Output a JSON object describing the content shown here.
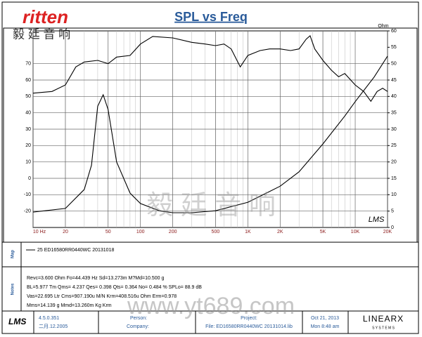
{
  "header": {
    "logo": "ritten",
    "logo_cn": "毅 廷 音 响"
  },
  "chart_data": {
    "type": "line",
    "title": "SPL vs Freq",
    "y2_label": "Ohm",
    "watermark": "LMS",
    "log_x": true,
    "grid": true,
    "xlim": [
      10,
      20000
    ],
    "xticks": [
      {
        "value": 10,
        "label": "10 Hz"
      },
      20,
      50,
      100,
      200,
      500,
      {
        "value": 1000,
        "label": "1K"
      },
      {
        "value": 2000,
        "label": "2K"
      },
      {
        "value": 5000,
        "label": "5K"
      },
      {
        "value": 10000,
        "label": "10K"
      },
      {
        "value": 20000,
        "label": "20K"
      }
    ],
    "ylim": [
      -30,
      90
    ],
    "yticks": [
      -20,
      -10,
      0,
      10,
      20,
      30,
      40,
      50,
      60,
      70
    ],
    "y2lim": [
      0,
      60
    ],
    "y2ticks": [
      0,
      5,
      10,
      15,
      20,
      25,
      30,
      35,
      40,
      45,
      50,
      55,
      60
    ],
    "series": [
      {
        "name": "25  ED16580RR0440WC  20131018",
        "color": "#000000",
        "x": [
          10,
          15,
          20,
          25,
          30,
          40,
          50,
          60,
          80,
          100,
          130,
          200,
          300,
          400,
          500,
          600,
          700,
          850,
          1000,
          1300,
          1600,
          2000,
          2500,
          3000,
          3500,
          3800,
          4200,
          5000,
          6000,
          7000,
          8000,
          10000,
          12000,
          14000,
          16000,
          18000,
          20000
        ],
        "values": [
          52,
          53,
          57,
          68,
          71,
          72,
          70,
          74,
          75,
          82,
          86.6,
          85.7,
          83,
          82,
          81,
          82,
          79,
          68,
          75,
          78,
          79,
          79,
          78,
          79,
          85,
          87,
          79,
          72,
          66,
          62,
          64,
          57,
          53,
          47,
          53,
          55,
          53
        ]
      },
      {
        "color": "#000000",
        "axis": "y2",
        "x": [
          10,
          20,
          30,
          35,
          40,
          45,
          50,
          60,
          80,
          100,
          150,
          200,
          300,
          500,
          1000,
          2000,
          3000,
          5000,
          8000,
          10000,
          15000,
          20000
        ],
        "values": [
          4.7,
          5.8,
          11.6,
          19,
          37,
          40.5,
          36,
          20,
          10.5,
          7.3,
          5.1,
          4.5,
          4.5,
          5.1,
          7.7,
          12.6,
          17,
          25.5,
          34,
          38.4,
          45.9,
          52.3
        ]
      }
    ]
  },
  "panel": {
    "map_label": "Map",
    "notes_label": "Notes",
    "notes": [
      "Revc=3.600 Ohm  Fo=44.439 Hz  Sd=13.273m M?Md=10.500 g",
      "BL=5.977 Tm  Qms= 4.237  Qes= 0.398  Qts= 0.364  No= 0.484 %  SPLo= 88.9 dB",
      "Vas=22.695 Ltr  Cms=907.190u M/N  Krm=408.516u Ohm  Erm=0.978",
      "Mms=14.139 g  Mmd=13.260m Kg  Krm"
    ]
  },
  "footer": {
    "logo": "LMS",
    "version": "4.5.0.351",
    "date_build": "二月.12.2005",
    "person": "Person:",
    "company": "Company:",
    "project": "Project:",
    "file": "File: ED16580RR0440WC 20131014.lib",
    "date": "Oct 21, 2013",
    "time": "Mon  8:48 am",
    "brand": "LINEARX",
    "brand_sub": "S Y S T E M S"
  },
  "watermark": {
    "url": "www.yt689.com",
    "cn": "毅 廷 音 响"
  }
}
